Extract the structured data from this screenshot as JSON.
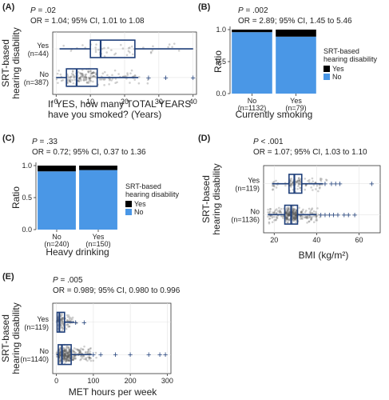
{
  "chart_data": [
    {
      "panel": "(A)",
      "type": "boxplot",
      "stat1": "P = .02",
      "stat2": "OR = 1.04; 95% CI, 1.01 to 1.08",
      "ylabel": [
        "SRT-based",
        "hearing disability"
      ],
      "xlabel": [
        "If YES, how many TOTAL YEARS",
        "have you smoked? (Years)"
      ],
      "xticks": [
        0,
        10,
        20,
        30,
        40
      ],
      "xlim": [
        -1,
        41
      ],
      "groups": [
        {
          "label": [
            "Yes",
            "(n=44)"
          ],
          "min": 1,
          "q1": 10,
          "median": 13,
          "q3": 23,
          "max": 40,
          "outliers": []
        },
        {
          "label": [
            "No",
            "(n=387)"
          ],
          "min": 0,
          "q1": 3,
          "median": 6,
          "q3": 12,
          "max": 24,
          "outliers": [
            27,
            32,
            40
          ]
        }
      ]
    },
    {
      "panel": "(B)",
      "type": "stacked-bar",
      "stat1": "P = .002",
      "stat2": "OR = 2.89; 95% CI, 1.45 to 5.46",
      "ylabel": "Ratio",
      "xlabel": "Currently smoking",
      "yticks": [
        "0.0",
        "0.5",
        "1.0"
      ],
      "categories": [
        [
          "No",
          "(n=1132)"
        ],
        [
          "Yes",
          "(n=79)"
        ]
      ],
      "series": [
        {
          "name": "Yes",
          "values": [
            0.04,
            0.11
          ]
        },
        {
          "name": "No",
          "values": [
            0.96,
            0.89
          ]
        }
      ],
      "legend_title": [
        "SRT-based",
        "hearing disability"
      ],
      "colors": {
        "Yes": "#000000",
        "No": "#4a97e6"
      }
    },
    {
      "panel": "(C)",
      "type": "stacked-bar",
      "stat1": "P = .33",
      "stat2": "OR = 0.72; 95% CI, 0.37 to 1.36",
      "ylabel": "Ratio",
      "xlabel": "Heavy drinking",
      "yticks": [
        "0.0",
        "0.5",
        "1.0"
      ],
      "categories": [
        [
          "No",
          "(n=240)"
        ],
        [
          "Yes",
          "(n=150)"
        ]
      ],
      "series": [
        {
          "name": "Yes",
          "values": [
            0.09,
            0.07
          ]
        },
        {
          "name": "No",
          "values": [
            0.91,
            0.93
          ]
        }
      ],
      "legend_title": [
        "SRT-based",
        "hearing disability"
      ],
      "colors": {
        "Yes": "#000000",
        "No": "#4a97e6"
      }
    },
    {
      "panel": "(D)",
      "type": "boxplot",
      "stat1": "P < .001",
      "stat2": "OR = 1.07; 95% CI, 1.03 to 1.10",
      "ylabel": [
        "SRT-based",
        "hearing disability"
      ],
      "xlabel": "BMI (kg/m²)",
      "xticks": [
        20,
        40,
        60
      ],
      "xlim": [
        15,
        70
      ],
      "groups": [
        {
          "label": [
            "Yes",
            "(n=119)"
          ],
          "min": 19,
          "q1": 27,
          "median": 29.5,
          "q3": 33,
          "max": 43,
          "outliers": [
            44,
            47,
            49,
            51,
            66
          ]
        },
        {
          "label": [
            "No",
            "(n=1136)"
          ],
          "min": 17,
          "q1": 25,
          "median": 28,
          "q3": 31,
          "max": 40,
          "outliers": [
            42,
            44,
            46,
            48,
            50,
            53,
            55,
            58
          ]
        }
      ]
    },
    {
      "panel": "(E)",
      "type": "boxplot",
      "stat1": "P = .005",
      "stat2": "OR = 0.989; 95% CI, 0.980 to 0.996",
      "ylabel": [
        "SRT-based",
        "hearing disability"
      ],
      "xlabel": "MET hours per week",
      "xticks": [
        0,
        100,
        200,
        300
      ],
      "xlim": [
        -10,
        310
      ],
      "groups": [
        {
          "label": [
            "Yes",
            "(n=119)"
          ],
          "min": 0,
          "q1": 2,
          "median": 8,
          "q3": 22,
          "max": 48,
          "outliers": [
            52,
            75
          ]
        },
        {
          "label": [
            "No",
            "(n=1140)"
          ],
          "min": 0,
          "q1": 5,
          "median": 15,
          "q3": 40,
          "max": 95,
          "outliers": [
            100,
            120,
            160,
            200,
            250,
            280,
            295
          ]
        }
      ]
    }
  ]
}
